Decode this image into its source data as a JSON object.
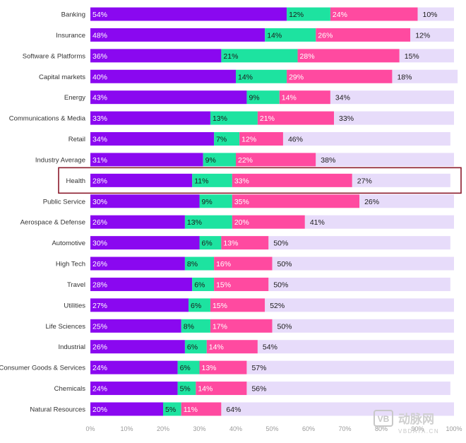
{
  "chart_data": {
    "type": "bar",
    "orientation": "horizontal",
    "stacked": true,
    "categories": [
      "Banking",
      "Insurance",
      "Software & Platforms",
      "Capital markets",
      "Energy",
      "Communications & Media",
      "Retail",
      "Industry Average",
      "Health",
      "Public Service",
      "Aerospace & Defense",
      "Automotive",
      "High Tech",
      "Travel",
      "Utilities",
      "Life Sciences",
      "Industrial",
      "Consumer Goods & Services",
      "Chemicals",
      "Natural Resources"
    ],
    "series": [
      {
        "color": "#8a08f0",
        "values": [
          54,
          48,
          36,
          40,
          43,
          33,
          34,
          31,
          28,
          30,
          26,
          30,
          26,
          28,
          27,
          25,
          26,
          24,
          24,
          20
        ]
      },
      {
        "color": "#1de3a0",
        "values": [
          12,
          14,
          21,
          14,
          9,
          13,
          7,
          9,
          11,
          9,
          13,
          6,
          8,
          6,
          6,
          8,
          6,
          6,
          5,
          5
        ]
      },
      {
        "color": "#ff4aa0",
        "values": [
          24,
          26,
          28,
          29,
          14,
          21,
          12,
          22,
          33,
          35,
          20,
          13,
          16,
          15,
          15,
          17,
          14,
          13,
          14,
          11
        ]
      },
      {
        "color": "#e7dcfa",
        "values": [
          10,
          12,
          15,
          18,
          34,
          33,
          46,
          38,
          27,
          26,
          41,
          50,
          50,
          50,
          52,
          50,
          54,
          57,
          56,
          64
        ]
      }
    ],
    "xlim": [
      0,
      100
    ],
    "x_ticks": [
      "0%",
      "10%",
      "20%",
      "30%",
      "40%",
      "50%",
      "60%",
      "70%",
      "80%",
      "90%",
      "100%"
    ],
    "highlighted_category": "Health",
    "highlight_color": "#8b1a2b",
    "grid": false
  },
  "watermark": {
    "logo_text": "VB",
    "brand_text": "动脉网",
    "domain_text": "VBDATA.CN"
  }
}
